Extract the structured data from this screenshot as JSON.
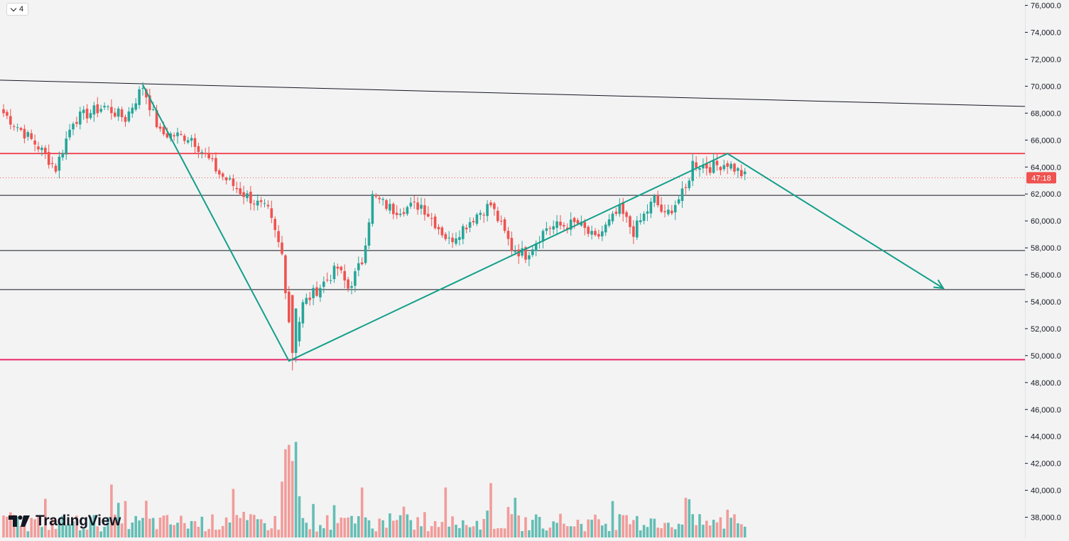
{
  "toolbar": {
    "collapse_count": "4"
  },
  "brand": {
    "name": "TradingView"
  },
  "countdown": "47:18",
  "colors": {
    "up": "#26a69a",
    "down": "#ef5350",
    "up_volume": "#26a69a",
    "down_volume": "#ef5350",
    "support_red": "#e91e63",
    "resistance_red": "#f23645",
    "pattern_green": "#139f8a",
    "background": "#f3f3f3"
  },
  "chart_data": {
    "type": "candlestick",
    "ylim": [
      36500,
      76400
    ],
    "y_ticks": [
      "76,000.0",
      "74,000.0",
      "72,000.0",
      "70,000.0",
      "68,000.0",
      "66,000.0",
      "64,000.0",
      "62,000.0",
      "60,000.0",
      "58,000.0",
      "56,000.0",
      "54,000.0",
      "52,000.0",
      "50,000.0",
      "48,000.0",
      "46,000.0",
      "44,000.0",
      "42,000.0",
      "40,000.0",
      "38,000.0"
    ],
    "horizontal_lines": [
      {
        "price": 65000,
        "color": "#f23645"
      },
      {
        "price": 61900,
        "color": "#131722"
      },
      {
        "price": 57800,
        "color": "#131722"
      },
      {
        "price": 54900,
        "color": "#131722"
      },
      {
        "price": 49700,
        "color": "#e91e63"
      }
    ],
    "current_price_line": {
      "price": 63200,
      "label": "47:18"
    },
    "trend_line": {
      "points": [
        [
          0,
          70450
        ],
        [
          287,
          68500
        ]
      ]
    },
    "pattern_path": [
      [
        40,
        70100
      ],
      [
        82,
        49600
      ],
      [
        208,
        65000
      ],
      [
        270,
        55000
      ]
    ],
    "anchors": [
      {
        "i": 0,
        "p": 68000
      },
      {
        "i": 10,
        "p": 65500
      },
      {
        "i": 15,
        "p": 63900
      },
      {
        "i": 20,
        "p": 67500
      },
      {
        "i": 29,
        "p": 68500
      },
      {
        "i": 35,
        "p": 67600
      },
      {
        "i": 40,
        "p": 70000
      },
      {
        "i": 45,
        "p": 66500
      },
      {
        "i": 54,
        "p": 66200
      },
      {
        "i": 62,
        "p": 63500
      },
      {
        "i": 68,
        "p": 62200
      },
      {
        "i": 76,
        "p": 60700
      },
      {
        "i": 80,
        "p": 57500
      },
      {
        "i": 83,
        "p": 50200
      },
      {
        "i": 86,
        "p": 53800
      },
      {
        "i": 96,
        "p": 56500
      },
      {
        "i": 99,
        "p": 55000
      },
      {
        "i": 103,
        "p": 57000
      },
      {
        "i": 106,
        "p": 61800
      },
      {
        "i": 112,
        "p": 60800
      },
      {
        "i": 120,
        "p": 61200
      },
      {
        "i": 128,
        "p": 58500
      },
      {
        "i": 136,
        "p": 60500
      },
      {
        "i": 140,
        "p": 61200
      },
      {
        "i": 146,
        "p": 58000
      },
      {
        "i": 150,
        "p": 57500
      },
      {
        "i": 156,
        "p": 59500
      },
      {
        "i": 165,
        "p": 59800
      },
      {
        "i": 170,
        "p": 58600
      },
      {
        "i": 177,
        "p": 60800
      },
      {
        "i": 181,
        "p": 59200
      },
      {
        "i": 187,
        "p": 61600
      },
      {
        "i": 190,
        "p": 60300
      },
      {
        "i": 196,
        "p": 62300
      },
      {
        "i": 198,
        "p": 64300
      },
      {
        "i": 203,
        "p": 64000
      },
      {
        "i": 208,
        "p": 64300
      },
      {
        "i": 213,
        "p": 63300
      }
    ],
    "volume_scale_max": 100,
    "volume_spikes": [
      {
        "i": 31,
        "v": 36
      },
      {
        "i": 41,
        "v": 25
      },
      {
        "i": 66,
        "v": 33
      },
      {
        "i": 80,
        "v": 38
      },
      {
        "i": 81,
        "v": 60
      },
      {
        "i": 82,
        "v": 63
      },
      {
        "i": 83,
        "v": 52
      },
      {
        "i": 84,
        "v": 65
      },
      {
        "i": 85,
        "v": 28
      },
      {
        "i": 103,
        "v": 34
      },
      {
        "i": 127,
        "v": 34
      },
      {
        "i": 140,
        "v": 37
      },
      {
        "i": 147,
        "v": 27
      },
      {
        "i": 196,
        "v": 27
      },
      {
        "i": 197,
        "v": 26
      }
    ]
  }
}
